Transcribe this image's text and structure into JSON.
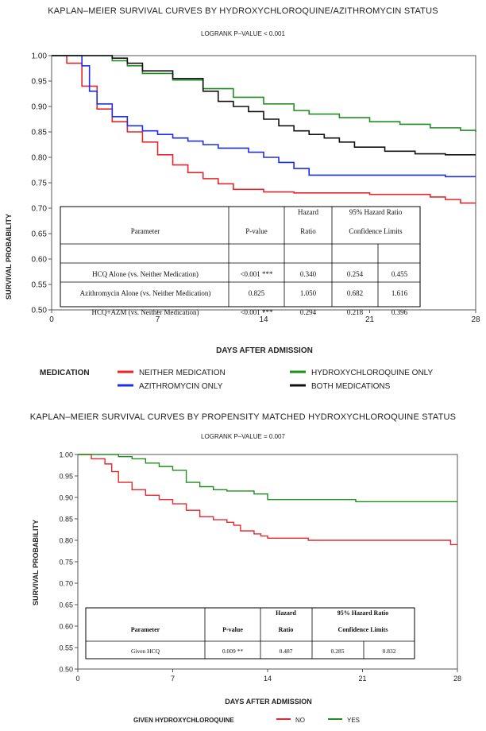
{
  "charts": [
    {
      "title": "KAPLAN–MEIER SURVIVAL CURVES BY HYDROXYCHLOROQUINE/AZITHROMYCIN STATUS",
      "subtitle": "LOGRANK P–VALUE < 0.001",
      "xlabel": "DAYS AFTER ADMISSION",
      "ylabel": "SURVIVAL PROBABILITY",
      "legend_title": "MEDICATION",
      "table": {
        "headers": [
          "Parameter",
          "P-value",
          "Hazard",
          "Ratio",
          "95% Hazard Ratio",
          "Confidence Limits"
        ],
        "rows": [
          [
            "HCQ Alone (vs. Neither Medication)",
            "<0.001 ***",
            "0.340",
            "0.254",
            "0.455"
          ],
          [
            "Azithromycin Alone (vs. Neither Medication)",
            "0.825",
            "1.050",
            "0.682",
            "1.616"
          ],
          [
            "HCQ+AZM (vs. Neither Medication)",
            "<0.001 ***",
            "0.294",
            "0.218",
            "0.396"
          ]
        ]
      }
    },
    {
      "title": "KAPLAN–MEIER SURVIVAL CURVES BY PROPENSITY MATCHED HYDROXYCHLOROQUINE STATUS",
      "subtitle": "LOGRANK P–VALUE = 0.007",
      "xlabel": "DAYS AFTER ADMISSION",
      "ylabel": "SURVIVAL PROBABILITY",
      "legend_title": "GIVEN HYDROXYCHLOROQUINE",
      "table": {
        "headers": [
          "Parameter",
          "P-value",
          "Hazard",
          "Ratio",
          "95% Hazard Ratio",
          "Confidence Limits"
        ],
        "rows": [
          [
            "Given HCQ",
            "0.009 **",
            "0.487",
            "0.285",
            "0.832"
          ]
        ]
      }
    }
  ],
  "chart_data": [
    {
      "type": "line",
      "title": "KAPLAN–MEIER SURVIVAL CURVES BY HYDROXYCHLOROQUINE/AZITHROMYCIN STATUS",
      "xlabel": "DAYS AFTER ADMISSION",
      "ylabel": "SURVIVAL PROBABILITY",
      "xlim": [
        0,
        28
      ],
      "ylim": [
        0.5,
        1.0
      ],
      "xticks": [
        "0",
        "7",
        "14",
        "21",
        "28"
      ],
      "yticks": [
        "0.50",
        "0.55",
        "0.60",
        "0.65",
        "0.70",
        "0.75",
        "0.80",
        "0.85",
        "0.90",
        "0.95",
        "1.00"
      ],
      "grid": false,
      "legend_position": "bottom",
      "series": [
        {
          "name": "NEITHER MEDICATION",
          "color": "#e8262b",
          "points": [
            [
              0,
              1.0
            ],
            [
              1,
              0.985
            ],
            [
              2,
              0.94
            ],
            [
              3,
              0.895
            ],
            [
              4,
              0.87
            ],
            [
              5,
              0.85
            ],
            [
              6,
              0.83
            ],
            [
              7,
              0.805
            ],
            [
              8,
              0.785
            ],
            [
              9,
              0.77
            ],
            [
              10,
              0.758
            ],
            [
              11,
              0.748
            ],
            [
              12,
              0.737
            ],
            [
              14,
              0.732
            ],
            [
              16,
              0.73
            ],
            [
              21,
              0.727
            ],
            [
              25,
              0.722
            ],
            [
              26,
              0.717
            ],
            [
              27,
              0.71
            ],
            [
              28,
              0.71
            ]
          ]
        },
        {
          "name": "AZITHROMYCIN ONLY",
          "color": "#1e2ee8",
          "points": [
            [
              0,
              1.0
            ],
            [
              2,
              0.98
            ],
            [
              2.5,
              0.93
            ],
            [
              3,
              0.905
            ],
            [
              4,
              0.88
            ],
            [
              5,
              0.862
            ],
            [
              6,
              0.852
            ],
            [
              7,
              0.845
            ],
            [
              8,
              0.838
            ],
            [
              9,
              0.832
            ],
            [
              10,
              0.825
            ],
            [
              11,
              0.818
            ],
            [
              13,
              0.81
            ],
            [
              14,
              0.8
            ],
            [
              15,
              0.79
            ],
            [
              16,
              0.778
            ],
            [
              17,
              0.765
            ],
            [
              18,
              0.765
            ],
            [
              25,
              0.765
            ],
            [
              26,
              0.762
            ],
            [
              28,
              0.762
            ]
          ]
        },
        {
          "name": "HYDROXYCHLOROQUINE ONLY",
          "color": "#1f8f1f",
          "points": [
            [
              0,
              1.0
            ],
            [
              2,
              1.0
            ],
            [
              4,
              0.99
            ],
            [
              5,
              0.98
            ],
            [
              6,
              0.965
            ],
            [
              8,
              0.952
            ],
            [
              10,
              0.935
            ],
            [
              12,
              0.918
            ],
            [
              14,
              0.905
            ],
            [
              16,
              0.892
            ],
            [
              17,
              0.885
            ],
            [
              19,
              0.878
            ],
            [
              21,
              0.87
            ],
            [
              23,
              0.865
            ],
            [
              25,
              0.858
            ],
            [
              27,
              0.853
            ],
            [
              28,
              0.85
            ]
          ]
        },
        {
          "name": "BOTH MEDICATIONS",
          "color": "#111111",
          "points": [
            [
              0,
              1.0
            ],
            [
              3,
              1.0
            ],
            [
              4,
              0.995
            ],
            [
              5,
              0.985
            ],
            [
              6,
              0.97
            ],
            [
              8,
              0.955
            ],
            [
              10,
              0.93
            ],
            [
              11,
              0.91
            ],
            [
              12,
              0.9
            ],
            [
              13,
              0.89
            ],
            [
              14,
              0.875
            ],
            [
              15,
              0.862
            ],
            [
              16,
              0.852
            ],
            [
              17,
              0.845
            ],
            [
              18,
              0.838
            ],
            [
              19,
              0.83
            ],
            [
              20,
              0.82
            ],
            [
              22,
              0.812
            ],
            [
              24,
              0.807
            ],
            [
              26,
              0.805
            ],
            [
              28,
              0.805
            ]
          ]
        }
      ]
    },
    {
      "type": "line",
      "title": "KAPLAN–MEIER SURVIVAL CURVES BY PROPENSITY MATCHED HYDROXYCHLOROQUINE STATUS",
      "xlabel": "DAYS AFTER ADMISSION",
      "ylabel": "SURVIVAL PROBABILITY",
      "xlim": [
        0,
        28
      ],
      "ylim": [
        0.5,
        1.0
      ],
      "xticks": [
        "0",
        "7",
        "14",
        "21",
        "28"
      ],
      "yticks": [
        "0.50",
        "0.55",
        "0.60",
        "0.65",
        "0.70",
        "0.75",
        "0.80",
        "0.85",
        "0.90",
        "0.95",
        "1.00"
      ],
      "grid": false,
      "legend_position": "bottom",
      "series": [
        {
          "name": "NO",
          "color": "#e8262b",
          "points": [
            [
              0,
              1.0
            ],
            [
              1,
              0.99
            ],
            [
              2,
              0.978
            ],
            [
              2.5,
              0.96
            ],
            [
              3,
              0.935
            ],
            [
              4,
              0.918
            ],
            [
              5,
              0.905
            ],
            [
              6,
              0.895
            ],
            [
              7,
              0.885
            ],
            [
              8,
              0.87
            ],
            [
              9,
              0.855
            ],
            [
              10,
              0.848
            ],
            [
              11,
              0.842
            ],
            [
              11.5,
              0.835
            ],
            [
              12,
              0.822
            ],
            [
              13,
              0.815
            ],
            [
              13.5,
              0.81
            ],
            [
              14,
              0.805
            ],
            [
              17,
              0.8
            ],
            [
              27,
              0.8
            ],
            [
              27.5,
              0.79
            ],
            [
              28,
              0.79
            ]
          ]
        },
        {
          "name": "YES",
          "color": "#1f8f1f",
          "points": [
            [
              0,
              1.0
            ],
            [
              2,
              1.0
            ],
            [
              3,
              0.995
            ],
            [
              4,
              0.99
            ],
            [
              5,
              0.98
            ],
            [
              6,
              0.972
            ],
            [
              7,
              0.963
            ],
            [
              8,
              0.935
            ],
            [
              9,
              0.925
            ],
            [
              10,
              0.918
            ],
            [
              11,
              0.915
            ],
            [
              13,
              0.908
            ],
            [
              14,
              0.895
            ],
            [
              20,
              0.895
            ],
            [
              20.5,
              0.89
            ],
            [
              28,
              0.89
            ]
          ]
        }
      ]
    }
  ]
}
